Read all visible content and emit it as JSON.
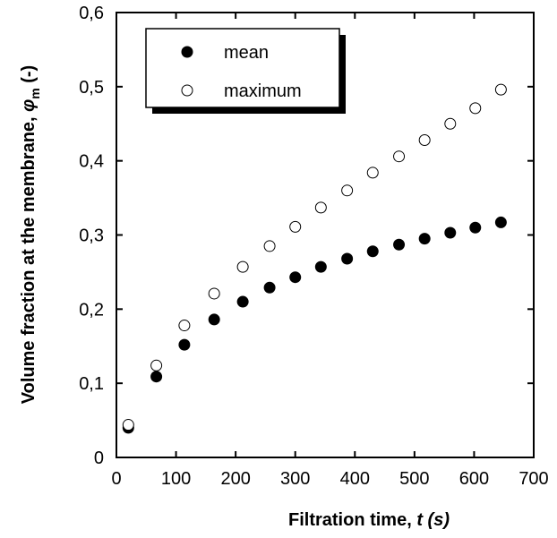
{
  "chart_data": {
    "type": "scatter",
    "xlabel_main": "Filtration time, ",
    "xlabel_var": "t (s)",
    "ylabel_main": "Volume fraction at the membrane, ",
    "ylabel_symbol": "φ",
    "ylabel_sub": "m",
    "ylabel_unit": " (-)",
    "xlim": [
      0,
      700
    ],
    "ylim": [
      0,
      0.6
    ],
    "x_ticks": [
      0,
      100,
      200,
      300,
      400,
      500,
      600,
      700
    ],
    "y_ticks": [
      0,
      0.1,
      0.2,
      0.3,
      0.4,
      0.5,
      0.6
    ],
    "x_tick_labels": [
      "0",
      "100",
      "200",
      "300",
      "400",
      "500",
      "600",
      "700"
    ],
    "y_tick_labels": [
      "0",
      "0,1",
      "0,2",
      "0,3",
      "0,4",
      "0,5",
      "0,6"
    ],
    "grid": false,
    "legend_position": "top-left",
    "series": [
      {
        "name": "mean",
        "marker": "filled-circle",
        "x": [
          20,
          67,
          114,
          164,
          212,
          257,
          300,
          343,
          387,
          430,
          474,
          517,
          560,
          602,
          645
        ],
        "y": [
          0.04,
          0.109,
          0.152,
          0.186,
          0.21,
          0.229,
          0.243,
          0.257,
          0.268,
          0.278,
          0.287,
          0.295,
          0.303,
          0.31,
          0.317
        ]
      },
      {
        "name": "maximum",
        "marker": "open-circle",
        "x": [
          20,
          67,
          114,
          164,
          212,
          257,
          300,
          343,
          387,
          430,
          474,
          517,
          560,
          602,
          645
        ],
        "y": [
          0.044,
          0.124,
          0.178,
          0.221,
          0.257,
          0.285,
          0.311,
          0.337,
          0.36,
          0.384,
          0.406,
          0.428,
          0.45,
          0.471,
          0.496
        ]
      }
    ]
  }
}
